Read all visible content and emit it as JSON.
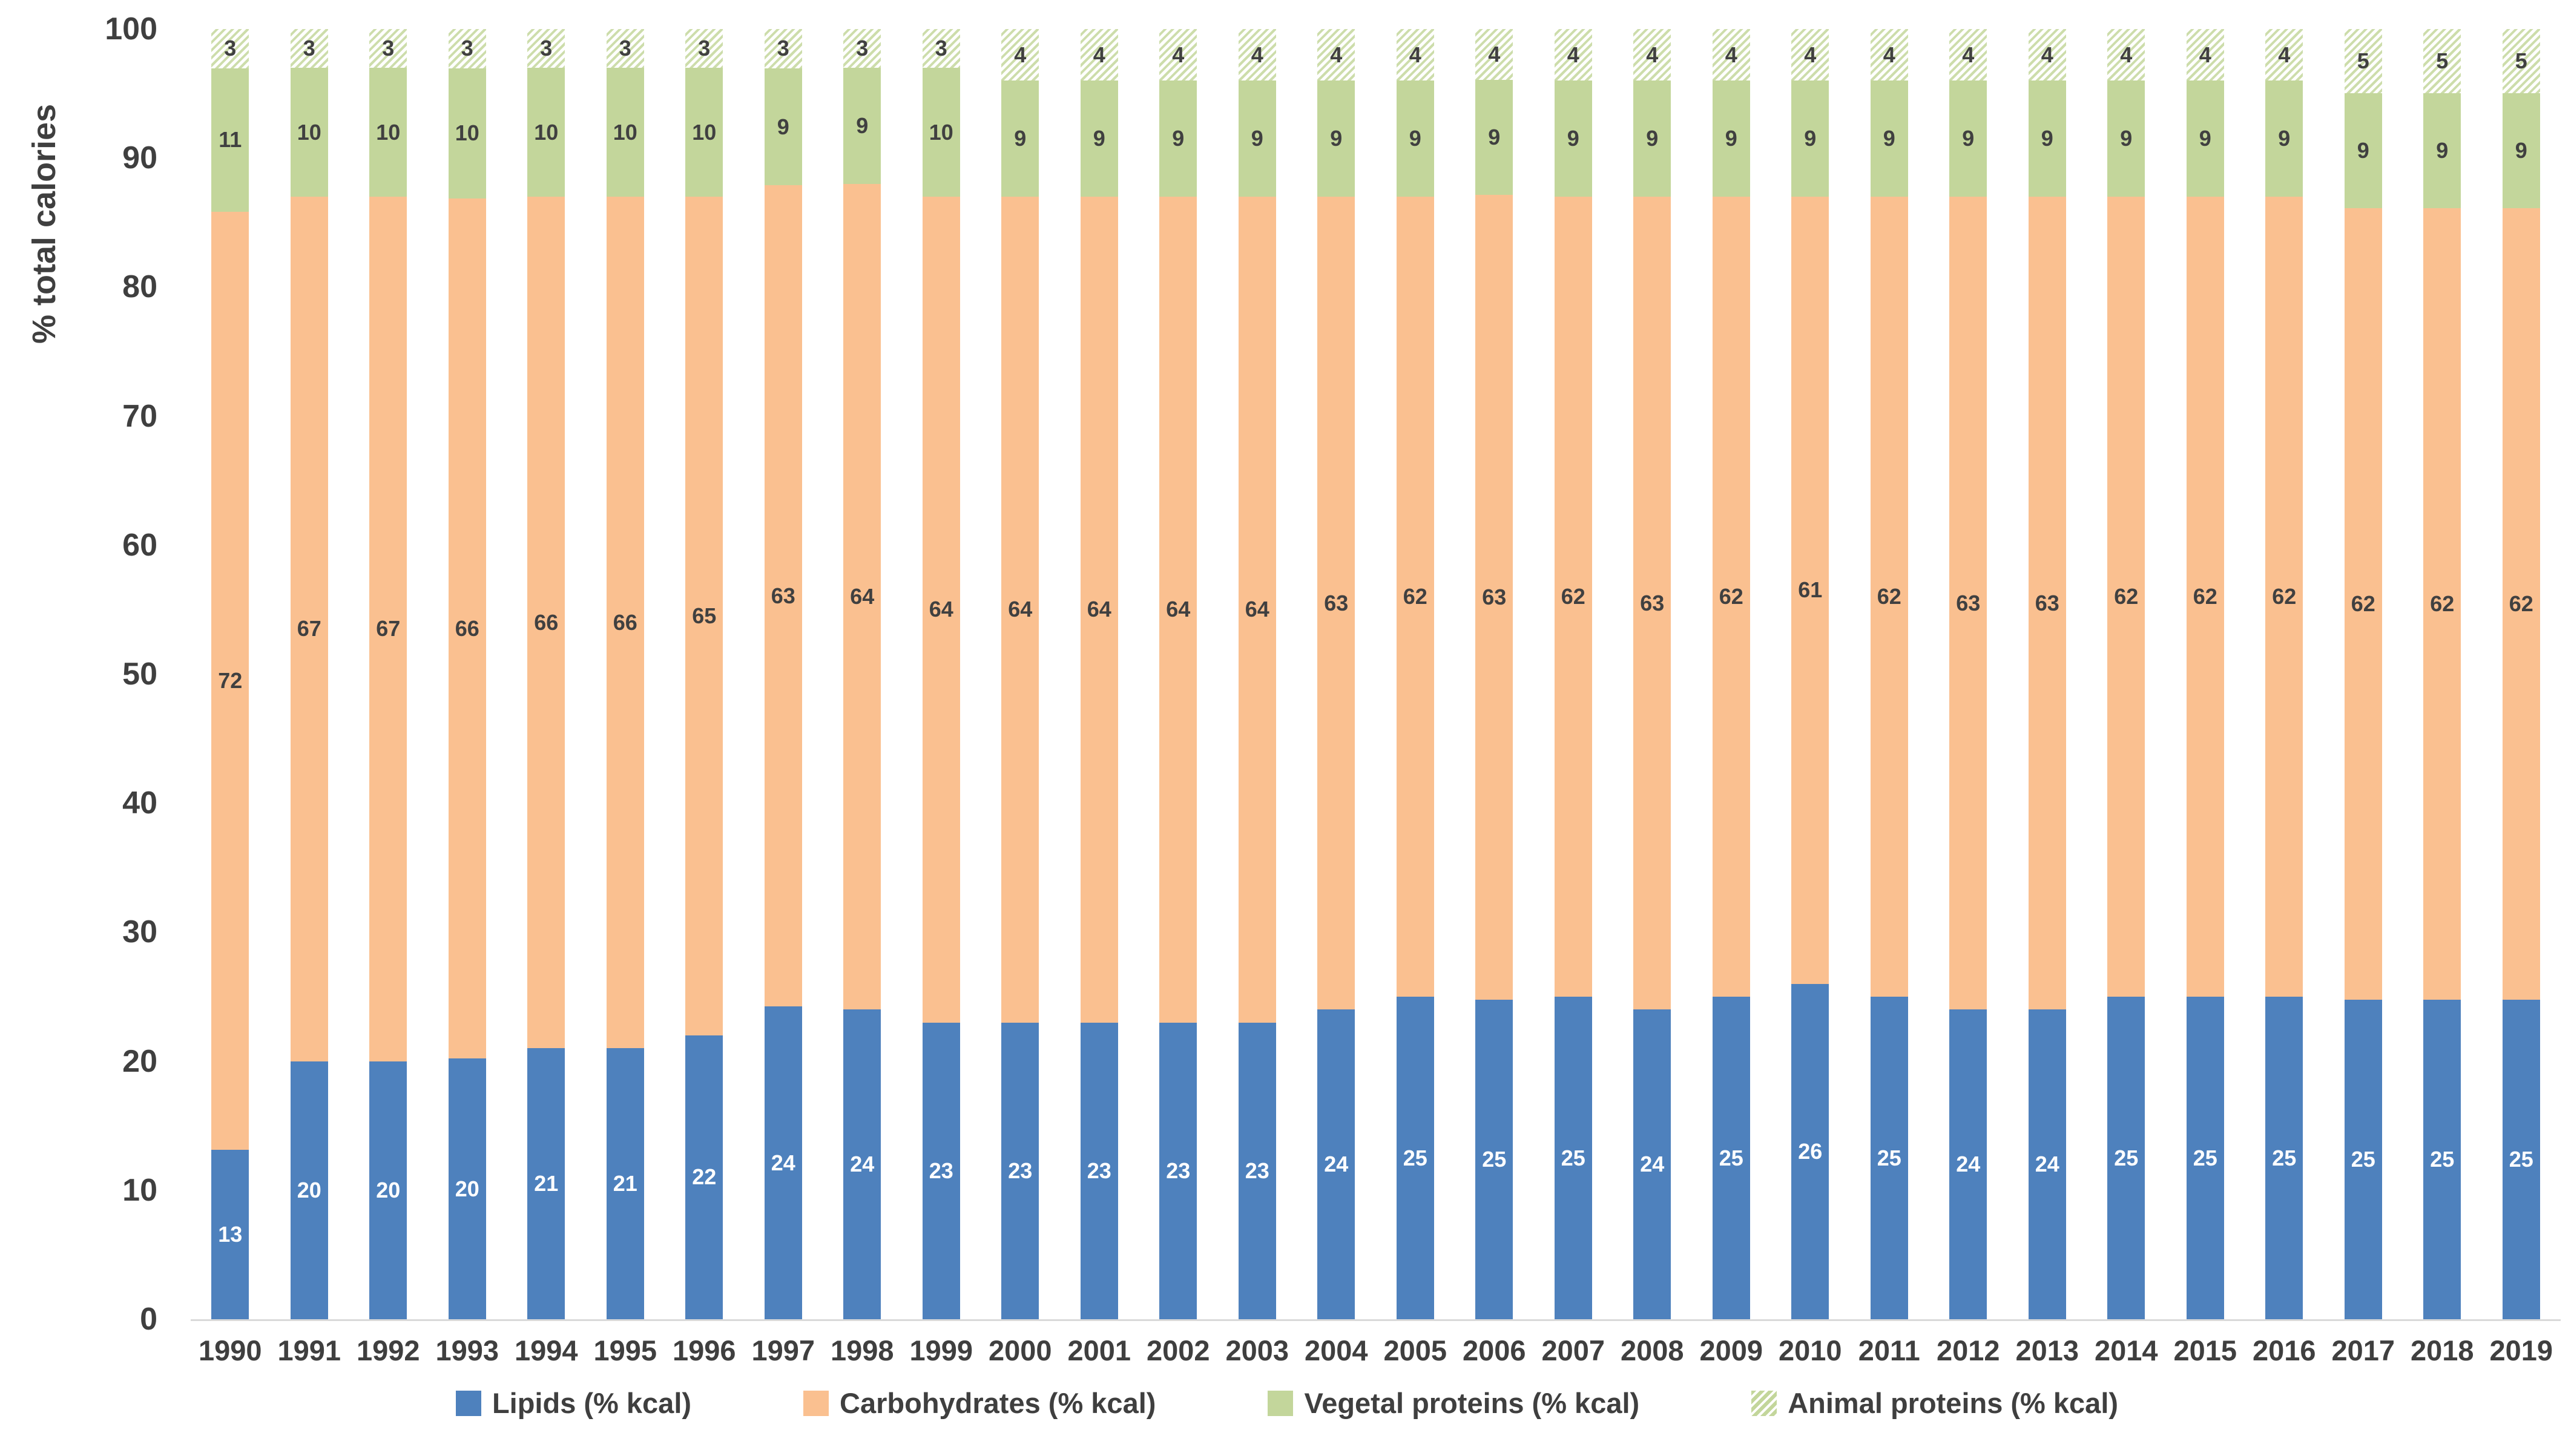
{
  "chart_data": {
    "type": "bar",
    "variant": "100-percent-stacked-column",
    "ylabel": "% total calories",
    "ylim": [
      0,
      100
    ],
    "yticks": [
      0,
      10,
      20,
      30,
      40,
      50,
      60,
      70,
      80,
      90,
      100
    ],
    "grid": false,
    "legend_position": "bottom",
    "axis_line_color": "#D9D9D9",
    "text_color": "#3F3F3F",
    "categories": [
      "1990",
      "1991",
      "1992",
      "1993",
      "1994",
      "1995",
      "1996",
      "1997",
      "1998",
      "1999",
      "2000",
      "2001",
      "2002",
      "2003",
      "2004",
      "2005",
      "2006",
      "2007",
      "2008",
      "2009",
      "2010",
      "2011",
      "2012",
      "2013",
      "2014",
      "2015",
      "2016",
      "2017",
      "2018",
      "2019"
    ],
    "series": [
      {
        "name": "Lipids (% kcal)",
        "slug": "lipids",
        "pattern": "solid",
        "color": "#4E81BD",
        "label_color": "#FFFFFF",
        "values": [
          13,
          20,
          20,
          20,
          21,
          21,
          22,
          24,
          24,
          23,
          23,
          23,
          23,
          23,
          24,
          25,
          25,
          25,
          24,
          25,
          26,
          25,
          24,
          24,
          25,
          25,
          25,
          25,
          25,
          25
        ]
      },
      {
        "name": "Carbohydrates (% kcal)",
        "slug": "carbohydrates",
        "pattern": "solid",
        "color": "#FAC090",
        "label_color": "#404040",
        "values": [
          72,
          67,
          67,
          66,
          66,
          66,
          65,
          63,
          64,
          64,
          64,
          64,
          64,
          64,
          63,
          62,
          63,
          62,
          63,
          62,
          61,
          62,
          63,
          63,
          62,
          62,
          62,
          62,
          62,
          62
        ]
      },
      {
        "name": "Vegetal proteins (% kcal)",
        "slug": "vegetal-proteins",
        "pattern": "solid",
        "color": "#C3D69B",
        "label_color": "#404040",
        "values": [
          11,
          10,
          10,
          10,
          10,
          10,
          10,
          9,
          9,
          10,
          9,
          9,
          9,
          9,
          9,
          9,
          9,
          9,
          9,
          9,
          9,
          9,
          9,
          9,
          9,
          9,
          9,
          9,
          9,
          9
        ]
      },
      {
        "name": "Animal proteins (% kcal)",
        "slug": "animal-proteins",
        "pattern": "diagonal-hatch",
        "color": "#C3D69B",
        "hatch_background": "#FFFFFF",
        "hatch_line": "#CDDDAB",
        "label_color": "#404040",
        "values": [
          3,
          3,
          3,
          3,
          3,
          3,
          3,
          3,
          3,
          3,
          4,
          4,
          4,
          4,
          4,
          4,
          4,
          4,
          4,
          4,
          4,
          4,
          4,
          4,
          4,
          4,
          4,
          5,
          5,
          5
        ]
      }
    ]
  }
}
